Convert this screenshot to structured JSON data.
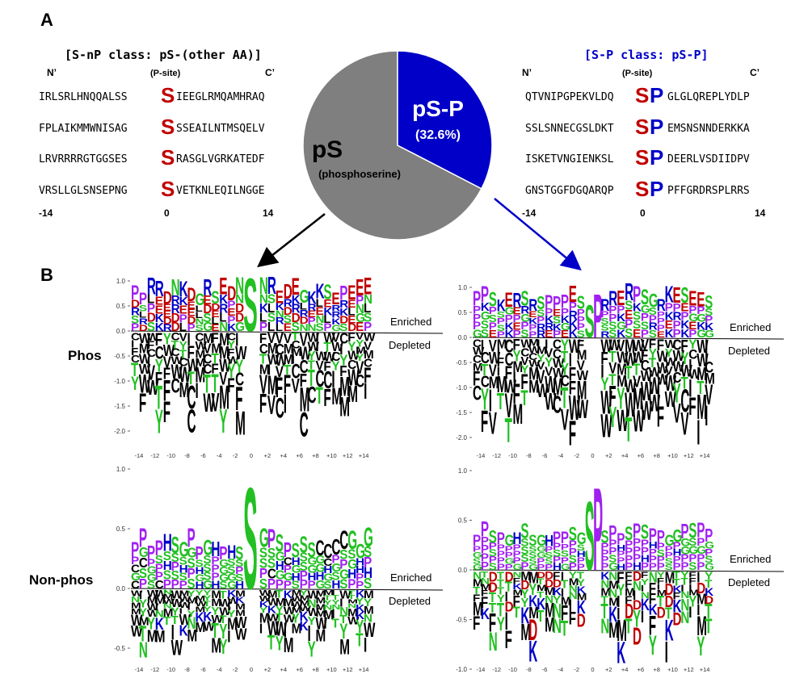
{
  "panels": {
    "a": "A",
    "b": "B"
  },
  "snp": {
    "title": "[S-nP class: pS-(other AA)]",
    "n_term": "N’",
    "c_term": "C’",
    "psite": "(P-site)",
    "center_letter": "S",
    "rows": [
      {
        "left": "IRLSRLHNQQALSS",
        "right": "IEEGLRMQAMHRAQ"
      },
      {
        "left": "FPLAIKMMWNISAG",
        "right": "SSEAILNTMSQELV"
      },
      {
        "left": "LRVRRRRGTGGSES",
        "right": "RASGLVGRKATEDF"
      },
      {
        "left": "VRSLLGLSNSEPNG",
        "right": "VETKNLEQILNGGE"
      }
    ],
    "axis": {
      "start": "-14",
      "mid": "0",
      "end": "14"
    }
  },
  "sp": {
    "title": "[S-P class: pS-P]",
    "n_term": "N’",
    "c_term": "C’",
    "psite": "(P-site)",
    "center_s": "S",
    "center_p": "P",
    "rows": [
      {
        "left": "QTVNIPGPEKVLDQ",
        "right": "GLGLQREPLYDLP"
      },
      {
        "left": "SSLSNNECGSLDKT",
        "right": "EMSNSNNDERKKA"
      },
      {
        "left": "ISKETVNGIENKSL",
        "right": "DEERLVSDIIDPV"
      },
      {
        "left": "GNSTGGFDGQARQP",
        "right": "PFFGRDRSPLRRS"
      }
    ],
    "axis": {
      "start": "-14",
      "mid": "0",
      "end": "14"
    }
  },
  "pie": {
    "big_label": "pS",
    "big_sub": "(phosphoserine)",
    "small_label": "pS-P",
    "small_pct": "(32.6%)",
    "fraction_sp": 0.326,
    "colors": {
      "ps": "#7f7f7f",
      "sp": "#0000c8"
    }
  },
  "row_labels": {
    "phos": "Phos",
    "nonphos": "Non-phos"
  },
  "zone_labels": {
    "enriched": "Enriched",
    "depleted": "Depleted"
  },
  "logos": {
    "x_ticks": [
      "-14",
      "-12",
      "-10",
      "-8",
      "-6",
      "-4",
      "-2",
      "0",
      "+2",
      "+4",
      "+6",
      "+8",
      "+10",
      "+12",
      "+14"
    ],
    "phos_snp": {
      "y_ticks": [
        "1.0",
        "0.5",
        "0.0",
        "-0.5",
        "-1.0",
        "-1.5",
        "-2.0"
      ],
      "center": "S"
    },
    "phos_sp": {
      "y_ticks": [
        "1.0",
        "0.5",
        "0.0",
        "-0.5",
        "-1.0",
        "-1.5",
        "-2.0"
      ],
      "center": "SP"
    },
    "non_snp": {
      "y_ticks": [
        "1.0",
        "0.5",
        "0.0",
        "-0.5"
      ],
      "center": "S"
    },
    "non_sp": {
      "y_ticks": [
        "1.0",
        "0.5",
        "0.0",
        "-0.5",
        "-1.0"
      ],
      "center": "SP"
    }
  },
  "colors": {
    "red": "#c00000",
    "blue": "#0000c8",
    "green": "#22c022",
    "purple": "#a020f0",
    "black": "#000000"
  }
}
